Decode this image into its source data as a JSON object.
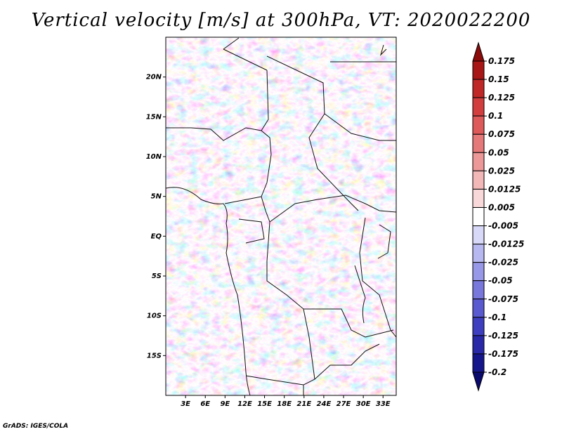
{
  "title": "Vertical velocity [m/s] at 300hPa, VT: 2020022200",
  "credit": "GrADS: IGES/COLA",
  "map": {
    "lat_labels": [
      "20N",
      "15N",
      "10N",
      "5N",
      "EQ",
      "5S",
      "10S",
      "15S"
    ],
    "lat_values": [
      20,
      15,
      10,
      5,
      0,
      -5,
      -10,
      -15
    ],
    "lon_labels": [
      "3E",
      "6E",
      "9E",
      "12E",
      "15E",
      "18E",
      "21E",
      "24E",
      "27E",
      "30E",
      "33E"
    ],
    "lon_values": [
      3,
      6,
      9,
      12,
      15,
      18,
      21,
      24,
      27,
      30,
      33
    ],
    "lon_range": [
      0,
      35
    ],
    "lat_range": [
      -20,
      25
    ]
  },
  "colorbar": {
    "labels": [
      "0.175",
      "0.15",
      "0.125",
      "0.1",
      "0.075",
      "0.05",
      "0.025",
      "0.0125",
      "0.005",
      "-0.005",
      "-0.0125",
      "-0.025",
      "-0.05",
      "-0.075",
      "-0.1",
      "-0.125",
      "-0.175",
      "-0.2"
    ],
    "colors": [
      "#8b0a0a",
      "#a81616",
      "#c02828",
      "#d23e3e",
      "#de5a5a",
      "#e57878",
      "#ec9898",
      "#f2b8b8",
      "#f8d8d8",
      "#ffffff",
      "#d8d8f8",
      "#b8b8f0",
      "#9898e8",
      "#7878dc",
      "#5a5ad0",
      "#3e3ec0",
      "#2828a8",
      "#16168c",
      "#0a0a6e"
    ]
  }
}
